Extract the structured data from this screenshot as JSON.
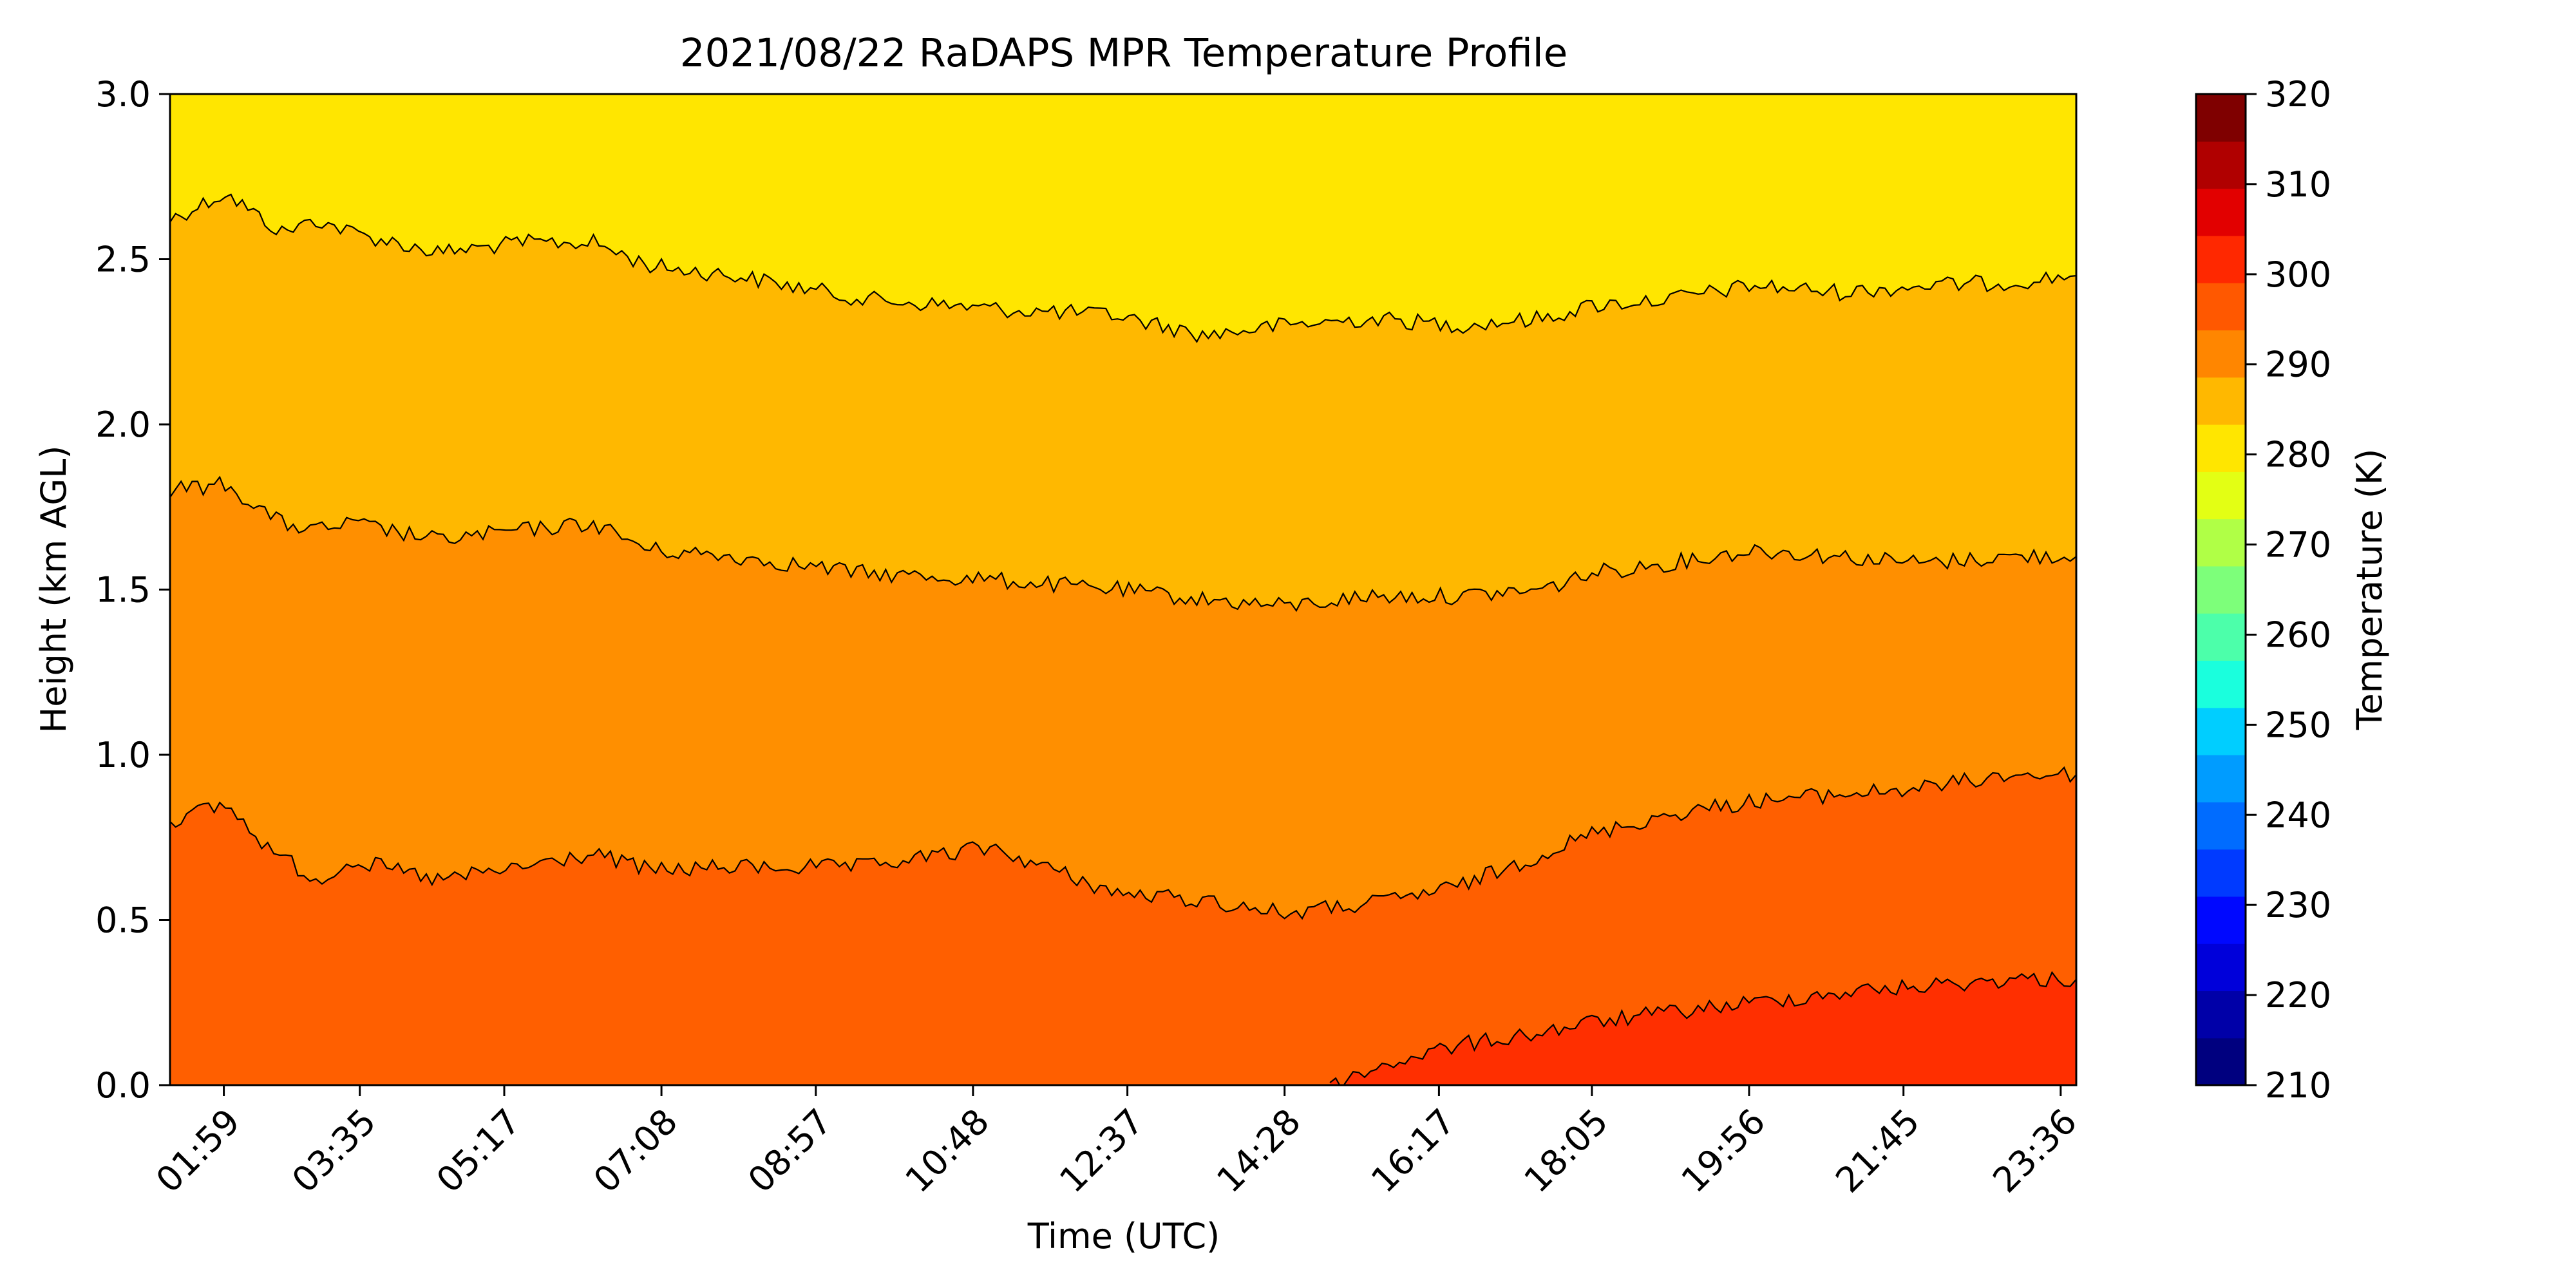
{
  "chart_data": {
    "type": "contour",
    "title": "2021/08/22 RaDAPS MPR Temperature Profile",
    "xlabel": "Time (UTC)",
    "ylabel": "Height (km AGL)",
    "xlim": [
      "01:21",
      "23:47"
    ],
    "ylim": [
      0.0,
      3.0
    ],
    "x_ticks": [
      "01:59",
      "03:35",
      "05:17",
      "07:08",
      "08:57",
      "10:48",
      "12:37",
      "14:28",
      "16:17",
      "18:05",
      "19:56",
      "21:45",
      "23:36"
    ],
    "y_ticks": [
      "0.0",
      "0.5",
      "1.0",
      "1.5",
      "2.0",
      "2.5",
      "3.0"
    ],
    "grid": false,
    "colorbar": {
      "label": "Temperature (K)",
      "range": [
        210,
        320
      ],
      "step": 5,
      "tick_labels": [
        "210",
        "220",
        "230",
        "240",
        "250",
        "260",
        "270",
        "280",
        "290",
        "300",
        "310",
        "320"
      ],
      "colors": [
        "#00007f",
        "#0000a8",
        "#0000da",
        "#0008ff",
        "#003aff",
        "#006cff",
        "#009cff",
        "#00ceff",
        "#1affdd",
        "#4cffaa",
        "#7dff7a",
        "#b0ff46",
        "#e3ff14",
        "#ffe600",
        "#ffb800",
        "#ff8600",
        "#ff5800",
        "#ff2800",
        "#e20000",
        "#b00000",
        "#7f0000"
      ]
    },
    "filled_levels": [
      {
        "from": 280,
        "to": 285,
        "color": "#ffe600"
      },
      {
        "from": 285,
        "to": 290,
        "color": "#ffb800"
      },
      {
        "from": 290,
        "to": 295,
        "color": "#ff8f00"
      },
      {
        "from": 295,
        "to": 300,
        "color": "#ff5f00"
      },
      {
        "from": 300,
        "to": 305,
        "color": "#ff2f00"
      }
    ],
    "contour_lines": [
      {
        "level": 285,
        "x": [
          "01:21",
          "02:00",
          "02:40",
          "03:04",
          "03:30",
          "04:30",
          "05:30",
          "06:20",
          "07:00",
          "08:00",
          "09:30",
          "11:00",
          "12:30",
          "13:30",
          "14:28",
          "15:30",
          "16:30",
          "17:30",
          "18:05",
          "19:00",
          "20:00",
          "21:00",
          "22:00",
          "23:00",
          "23:47"
        ],
        "height_km": [
          2.62,
          2.7,
          2.58,
          2.62,
          2.58,
          2.52,
          2.55,
          2.55,
          2.48,
          2.45,
          2.38,
          2.35,
          2.33,
          2.27,
          2.3,
          2.32,
          2.3,
          2.32,
          2.36,
          2.38,
          2.42,
          2.4,
          2.42,
          2.43,
          2.45
        ]
      },
      {
        "level": 290,
        "x": [
          "01:21",
          "02:00",
          "02:40",
          "03:04",
          "03:30",
          "04:30",
          "05:30",
          "06:20",
          "07:00",
          "08:00",
          "09:30",
          "11:00",
          "12:30",
          "13:30",
          "14:28",
          "15:30",
          "16:30",
          "17:30",
          "18:05",
          "19:00",
          "20:00",
          "21:00",
          "22:00",
          "23:00",
          "23:47"
        ],
        "height_km": [
          1.8,
          1.82,
          1.7,
          1.68,
          1.7,
          1.65,
          1.68,
          1.7,
          1.62,
          1.6,
          1.55,
          1.53,
          1.5,
          1.47,
          1.45,
          1.48,
          1.48,
          1.5,
          1.55,
          1.58,
          1.62,
          1.6,
          1.58,
          1.6,
          1.6
        ]
      },
      {
        "level": 295,
        "x": [
          "01:21",
          "02:00",
          "02:30",
          "03:04",
          "03:30",
          "04:30",
          "05:30",
          "06:20",
          "07:00",
          "08:00",
          "09:30",
          "11:00",
          "12:30",
          "13:30",
          "14:28",
          "15:30",
          "16:30",
          "17:30",
          "18:05",
          "19:00",
          "20:00",
          "21:00",
          "22:00",
          "23:00",
          "23:47"
        ],
        "height_km": [
          0.8,
          0.85,
          0.72,
          0.62,
          0.68,
          0.62,
          0.66,
          0.7,
          0.65,
          0.66,
          0.66,
          0.72,
          0.58,
          0.56,
          0.52,
          0.55,
          0.6,
          0.7,
          0.76,
          0.82,
          0.86,
          0.88,
          0.9,
          0.94,
          0.94
        ]
      },
      {
        "level": 300,
        "x": [
          "15:00",
          "15:45",
          "16:30",
          "17:30",
          "18:05",
          "19:00",
          "20:00",
          "21:00",
          "22:00",
          "23:00",
          "23:47"
        ],
        "height_km": [
          0.0,
          0.07,
          0.12,
          0.16,
          0.19,
          0.22,
          0.25,
          0.28,
          0.3,
          0.32,
          0.32
        ]
      }
    ]
  }
}
